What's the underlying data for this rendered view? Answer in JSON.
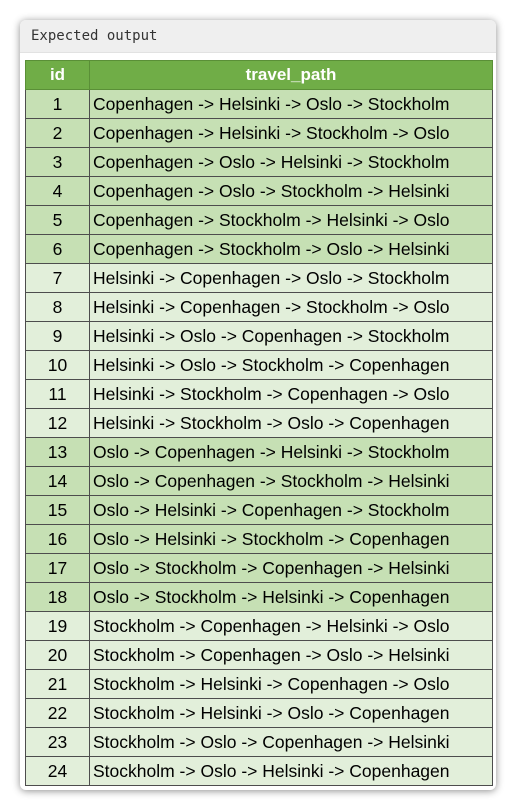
{
  "header": {
    "title": "Expected output"
  },
  "table": {
    "columns": [
      "id",
      "travel_path"
    ],
    "rows": [
      {
        "id": "1",
        "travel_path": "Copenhagen -> Helsinki -> Oslo -> Stockholm"
      },
      {
        "id": "2",
        "travel_path": "Copenhagen -> Helsinki -> Stockholm -> Oslo"
      },
      {
        "id": "3",
        "travel_path": "Copenhagen -> Oslo -> Helsinki -> Stockholm"
      },
      {
        "id": "4",
        "travel_path": "Copenhagen -> Oslo -> Stockholm -> Helsinki"
      },
      {
        "id": "5",
        "travel_path": "Copenhagen -> Stockholm -> Helsinki -> Oslo"
      },
      {
        "id": "6",
        "travel_path": "Copenhagen -> Stockholm -> Oslo -> Helsinki"
      },
      {
        "id": "7",
        "travel_path": "Helsinki -> Copenhagen -> Oslo -> Stockholm"
      },
      {
        "id": "8",
        "travel_path": "Helsinki -> Copenhagen -> Stockholm -> Oslo"
      },
      {
        "id": "9",
        "travel_path": "Helsinki -> Oslo -> Copenhagen -> Stockholm"
      },
      {
        "id": "10",
        "travel_path": "Helsinki -> Oslo -> Stockholm -> Copenhagen"
      },
      {
        "id": "11",
        "travel_path": "Helsinki -> Stockholm -> Copenhagen -> Oslo"
      },
      {
        "id": "12",
        "travel_path": "Helsinki -> Stockholm -> Oslo -> Copenhagen"
      },
      {
        "id": "13",
        "travel_path": "Oslo -> Copenhagen -> Helsinki -> Stockholm"
      },
      {
        "id": "14",
        "travel_path": "Oslo -> Copenhagen -> Stockholm -> Helsinki"
      },
      {
        "id": "15",
        "travel_path": "Oslo -> Helsinki -> Copenhagen -> Stockholm"
      },
      {
        "id": "16",
        "travel_path": "Oslo -> Helsinki -> Stockholm -> Copenhagen"
      },
      {
        "id": "17",
        "travel_path": "Oslo -> Stockholm -> Copenhagen -> Helsinki"
      },
      {
        "id": "18",
        "travel_path": "Oslo -> Stockholm -> Helsinki -> Copenhagen"
      },
      {
        "id": "19",
        "travel_path": "Stockholm -> Copenhagen -> Helsinki -> Oslo"
      },
      {
        "id": "20",
        "travel_path": "Stockholm -> Copenhagen -> Oslo -> Helsinki"
      },
      {
        "id": "21",
        "travel_path": "Stockholm -> Helsinki -> Copenhagen -> Oslo"
      },
      {
        "id": "22",
        "travel_path": "Stockholm -> Helsinki -> Oslo -> Copenhagen"
      },
      {
        "id": "23",
        "travel_path": "Stockholm -> Oslo -> Copenhagen -> Helsinki"
      },
      {
        "id": "24",
        "travel_path": "Stockholm -> Oslo -> Helsinki -> Copenhagen"
      }
    ]
  },
  "colors": {
    "header_green": "#70ad47",
    "row_group_a": "#c6e0b4",
    "row_group_b": "#e2efda"
  }
}
